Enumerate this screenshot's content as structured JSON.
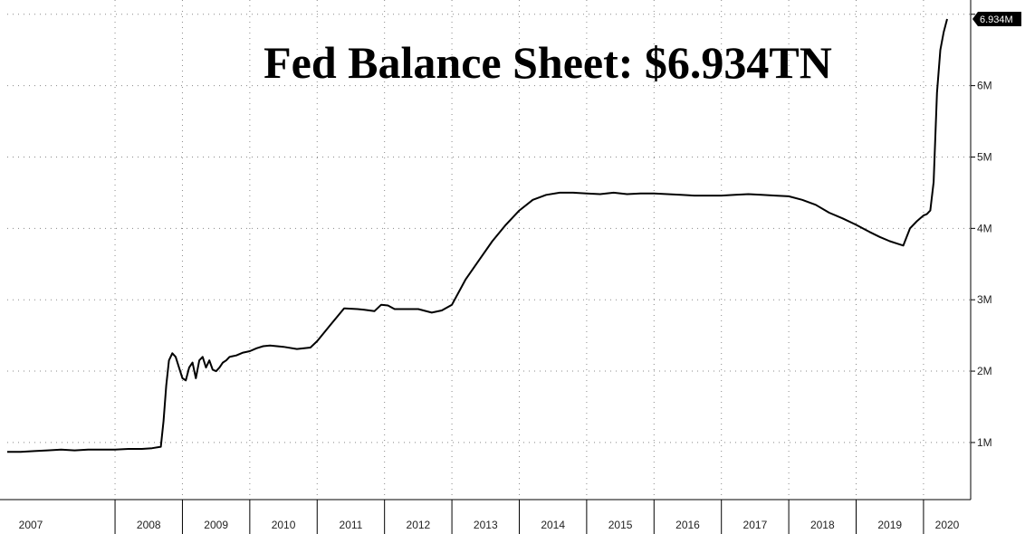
{
  "chart_data": {
    "type": "line",
    "title": "Fed Balance Sheet: $6.934TN",
    "xlabel": "",
    "ylabel": "",
    "x_ticks": [
      "2007",
      "2008",
      "2009",
      "2010",
      "2011",
      "2012",
      "2013",
      "2014",
      "2015",
      "2016",
      "2017",
      "2018",
      "2019",
      "2020"
    ],
    "y_ticks": [
      "1M",
      "2M",
      "3M",
      "4M",
      "5M",
      "6M"
    ],
    "y_tick_values": [
      1,
      2,
      3,
      4,
      5,
      6
    ],
    "xlim": [
      2006.4,
      2020.7
    ],
    "ylim": [
      0.2,
      7.2
    ],
    "grid": true,
    "last_value_label": "6.934M",
    "last_value": 6.934,
    "colors": {
      "line": "#000000",
      "grid": "#888888",
      "badge": "#000000"
    },
    "series": [
      {
        "x": [
          2006.4,
          2006.6,
          2006.8,
          2007.0,
          2007.2,
          2007.4,
          2007.6,
          2007.8,
          2008.0,
          2008.2,
          2008.4,
          2008.55,
          2008.68,
          2008.72,
          2008.76,
          2008.8,
          2008.85,
          2008.9,
          2008.95,
          2009.0,
          2009.05,
          2009.1,
          2009.15,
          2009.2,
          2009.25,
          2009.3,
          2009.35,
          2009.4,
          2009.45,
          2009.5,
          2009.55,
          2009.6,
          2009.65,
          2009.7,
          2009.8,
          2009.9,
          2010.0,
          2010.1,
          2010.2,
          2010.3,
          2010.5,
          2010.7,
          2010.9,
          2011.0,
          2011.2,
          2011.4,
          2011.6,
          2011.7,
          2011.85,
          2011.95,
          2012.05,
          2012.15,
          2012.3,
          2012.5,
          2012.7,
          2012.85,
          2013.0,
          2013.2,
          2013.4,
          2013.6,
          2013.8,
          2014.0,
          2014.2,
          2014.4,
          2014.6,
          2014.8,
          2015.0,
          2015.2,
          2015.4,
          2015.6,
          2015.8,
          2016.0,
          2016.2,
          2016.4,
          2016.6,
          2016.8,
          2017.0,
          2017.2,
          2017.4,
          2017.6,
          2017.8,
          2018.0,
          2018.2,
          2018.4,
          2018.6,
          2018.8,
          2019.0,
          2019.2,
          2019.35,
          2019.5,
          2019.6,
          2019.7,
          2019.8,
          2019.9,
          2020.0,
          2020.05,
          2020.1,
          2020.15,
          2020.2,
          2020.25,
          2020.3,
          2020.35
        ],
        "y": [
          0.87,
          0.87,
          0.88,
          0.89,
          0.9,
          0.89,
          0.9,
          0.9,
          0.9,
          0.91,
          0.91,
          0.92,
          0.94,
          1.3,
          1.8,
          2.15,
          2.25,
          2.2,
          2.05,
          1.9,
          1.87,
          2.05,
          2.12,
          1.9,
          2.15,
          2.2,
          2.05,
          2.15,
          2.02,
          2.0,
          2.05,
          2.12,
          2.15,
          2.2,
          2.22,
          2.26,
          2.28,
          2.32,
          2.35,
          2.36,
          2.34,
          2.31,
          2.33,
          2.42,
          2.65,
          2.88,
          2.87,
          2.86,
          2.84,
          2.93,
          2.92,
          2.87,
          2.87,
          2.87,
          2.82,
          2.85,
          2.93,
          3.28,
          3.55,
          3.82,
          4.05,
          4.25,
          4.4,
          4.47,
          4.5,
          4.5,
          4.49,
          4.48,
          4.5,
          4.48,
          4.49,
          4.49,
          4.48,
          4.47,
          4.46,
          4.46,
          4.46,
          4.47,
          4.48,
          4.47,
          4.46,
          4.45,
          4.4,
          4.33,
          4.22,
          4.14,
          4.05,
          3.95,
          3.88,
          3.82,
          3.79,
          3.76,
          4.0,
          4.1,
          4.18,
          4.2,
          4.25,
          4.65,
          5.9,
          6.5,
          6.75,
          6.934
        ]
      }
    ]
  }
}
